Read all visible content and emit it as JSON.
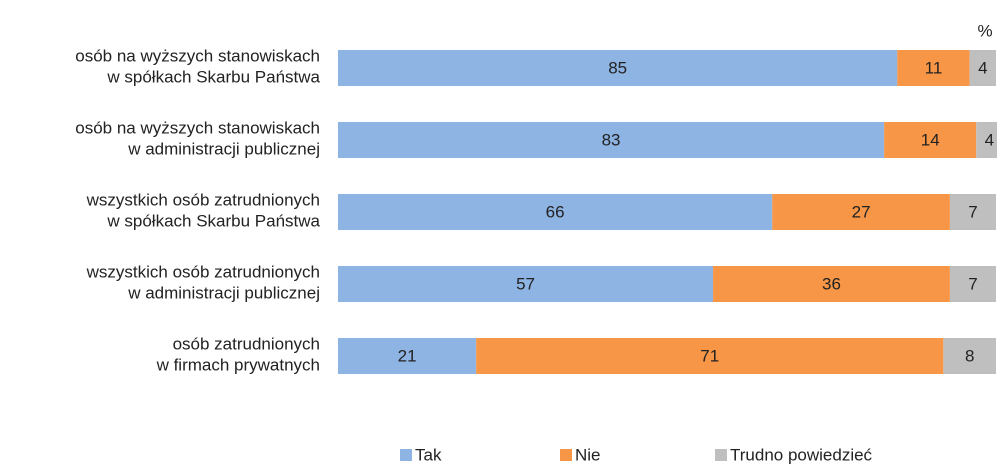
{
  "chart_data": {
    "type": "stacked-bar-horizontal",
    "unit": "%",
    "categories": [
      "osób na wyższych stanowiskach\nw spółkach Skarbu Państwa",
      "osób na wyższych stanowiskach\nw administracji publicznej",
      "wszystkich osób zatrudnionych\nw spółkach Skarbu Państwa",
      "wszystkich osób zatrudnionych\nw administracji publicznej",
      "osób zatrudnionych\nw firmach prywatnych"
    ],
    "series": [
      {
        "name": "Tak",
        "color": "#8eb4e3",
        "values": [
          85,
          83,
          66,
          57,
          21
        ]
      },
      {
        "name": "Nie",
        "color": "#f79646",
        "values": [
          11,
          14,
          27,
          36,
          71
        ]
      },
      {
        "name": "Trudno powiedzieć",
        "color": "#bfbfbf",
        "values": [
          4,
          4,
          7,
          7,
          8
        ]
      }
    ],
    "xlim": [
      0,
      100
    ],
    "legend": "bottom"
  }
}
